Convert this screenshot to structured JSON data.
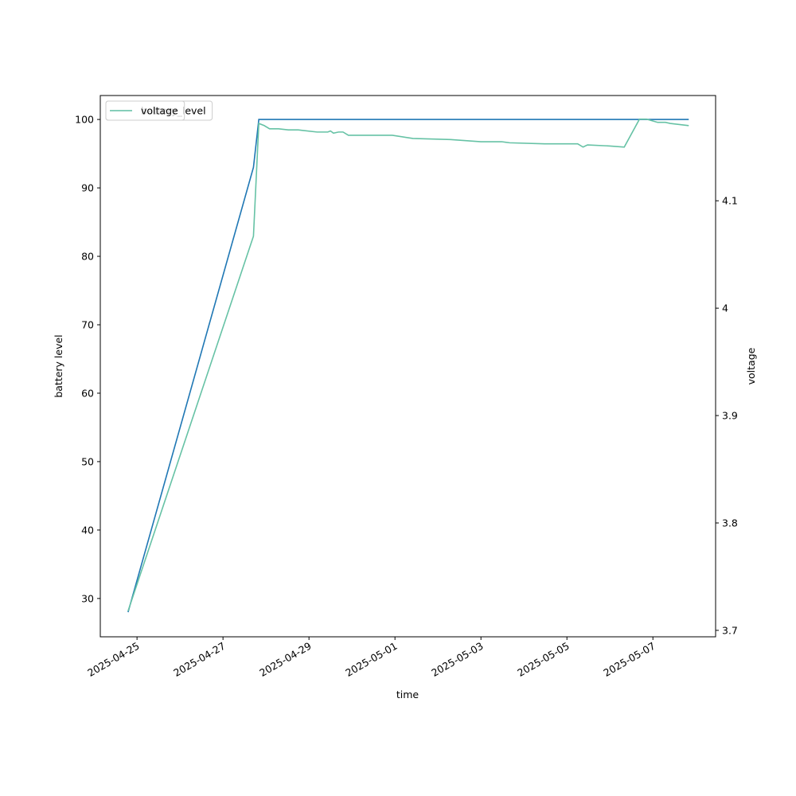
{
  "chart_data": {
    "type": "line",
    "x_label": "time",
    "y_label": "battery level",
    "y2_label": "voltage",
    "xlim": [
      "2025-04-24T03:30",
      "2025-05-08T11:00"
    ],
    "xticks": [
      "2025-04-25",
      "2025-04-27",
      "2025-04-29",
      "2025-05-01",
      "2025-05-03",
      "2025-05-05",
      "2025-05-07"
    ],
    "ylim": [
      24.4,
      103.5
    ],
    "yticks": [
      30,
      40,
      50,
      60,
      70,
      80,
      90,
      100
    ],
    "y2lim": [
      3.694,
      4.198
    ],
    "y2ticks": [
      3.7,
      3.8,
      3.9,
      4.0,
      4.1
    ],
    "legend": "upper left",
    "series": [
      {
        "name": "battery_level",
        "color": "#1f77b4",
        "x": [
          "2025-04-24T19:00",
          "2025-04-27T17:00",
          "2025-04-27T20:00",
          "2025-05-07T20:00"
        ],
        "values": [
          28,
          93,
          100,
          100
        ]
      },
      {
        "name": "voltage",
        "color": "#66c2a5",
        "axis": "y2",
        "x": [
          "2025-04-24T19:00",
          "2025-04-27T17:00",
          "2025-04-27T20:00",
          "2025-04-27T23:00",
          "2025-04-28T02:00",
          "2025-04-28T07:00",
          "2025-04-28T12:30",
          "2025-04-28T18:00",
          "2025-04-29T04:30",
          "2025-04-29T10:30",
          "2025-04-29T12:00",
          "2025-04-29T13:40",
          "2025-04-29T16:30",
          "2025-04-29T19:00",
          "2025-04-29T22:00",
          "2025-04-30T08:00",
          "2025-04-30T19:00",
          "2025-04-30T22:30",
          "2025-05-01T10:00",
          "2025-05-02T07:00",
          "2025-05-03T00:00",
          "2025-05-03T11:30",
          "2025-05-03T16:00",
          "2025-05-04T11:30",
          "2025-05-05T06:00",
          "2025-05-05T09:00",
          "2025-05-05T11:30",
          "2025-05-06T00:00",
          "2025-05-06T08:00",
          "2025-05-06T16:30",
          "2025-05-06T20:30",
          "2025-05-07T02:40",
          "2025-05-07T07:00",
          "2025-05-07T09:40",
          "2025-05-07T20:00"
        ],
        "values": [
          3.718,
          4.067,
          4.172,
          4.17,
          4.167,
          4.167,
          4.166,
          4.166,
          4.164,
          4.164,
          4.165,
          4.163,
          4.164,
          4.164,
          4.161,
          4.161,
          4.161,
          4.161,
          4.158,
          4.157,
          4.155,
          4.155,
          4.154,
          4.153,
          4.153,
          4.15,
          4.152,
          4.151,
          4.15,
          4.176,
          4.176,
          4.173,
          4.173,
          4.172,
          4.17
        ]
      }
    ]
  }
}
